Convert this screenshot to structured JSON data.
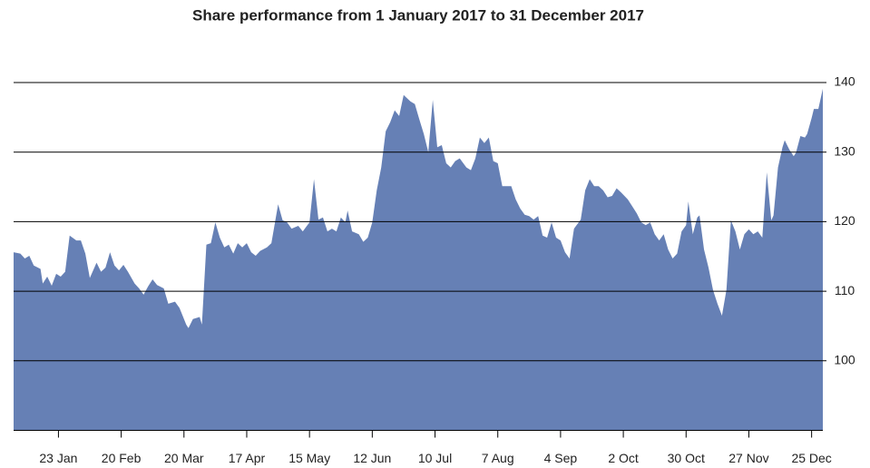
{
  "chart_data": {
    "type": "area",
    "title": "Share performance from 1 January 2017 to 31 December 2017",
    "color": "#6680b5",
    "grid": true,
    "yaxis_side": "right",
    "xlim": [
      3,
      364
    ],
    "ylim": [
      90,
      140
    ],
    "yticks": [
      100,
      110,
      120,
      130,
      140
    ],
    "xticks": [
      {
        "value": 23,
        "label": "23 Jan"
      },
      {
        "value": 51,
        "label": "20 Feb"
      },
      {
        "value": 79,
        "label": "20 Mar"
      },
      {
        "value": 107,
        "label": "17 Apr"
      },
      {
        "value": 135,
        "label": "15 May"
      },
      {
        "value": 163,
        "label": "12 Jun"
      },
      {
        "value": 191,
        "label": "10 Jul"
      },
      {
        "value": 219,
        "label": "7 Aug"
      },
      {
        "value": 247,
        "label": "4 Sep"
      },
      {
        "value": 275,
        "label": "2 Oct"
      },
      {
        "value": 303,
        "label": "30 Oct"
      },
      {
        "value": 331,
        "label": "27 Nov"
      },
      {
        "value": 359,
        "label": "25 Dec"
      }
    ],
    "x": [
      3,
      6,
      8,
      10,
      12,
      15,
      16,
      18,
      20,
      22,
      24,
      26,
      28,
      31,
      33,
      35,
      37,
      40,
      42,
      44,
      46,
      48,
      50,
      52,
      54,
      57,
      59,
      61,
      63,
      65,
      67,
      70,
      72,
      75,
      77,
      80,
      81,
      83,
      86,
      87,
      89,
      91,
      93,
      95,
      97,
      99,
      101,
      103,
      105,
      107,
      109,
      111,
      113,
      116,
      118,
      121,
      123,
      125,
      127,
      130,
      132,
      135,
      137,
      139,
      141,
      143,
      145,
      147,
      149,
      151,
      152,
      154,
      157,
      159,
      161,
      163,
      165,
      167,
      169,
      171,
      173,
      175,
      177,
      180,
      182,
      184,
      186,
      188,
      190,
      192,
      194,
      196,
      198,
      200,
      202,
      205,
      207,
      209,
      211,
      213,
      215,
      217,
      219,
      221,
      223,
      225,
      227,
      229,
      231,
      233,
      235,
      237,
      239,
      241,
      243,
      245,
      247,
      249,
      251,
      253,
      256,
      258,
      260,
      262,
      264,
      266,
      268,
      270,
      272,
      274,
      277,
      279,
      281,
      283,
      285,
      287,
      289,
      291,
      293,
      295,
      297,
      299,
      301,
      303,
      304,
      306,
      308,
      309,
      311,
      313,
      315,
      317,
      319,
      321,
      323,
      325,
      327,
      329,
      331,
      333,
      335,
      337,
      339,
      341,
      342,
      344,
      346,
      347,
      349,
      351,
      352,
      354,
      356,
      357,
      359,
      360,
      362,
      364
    ],
    "values": [
      115.6,
      115.4,
      114.7,
      115.1,
      113.7,
      113.2,
      111.1,
      112.1,
      110.8,
      112.5,
      112.1,
      112.8,
      118,
      117.3,
      117.3,
      115.4,
      111.9,
      114.1,
      112.8,
      113.4,
      115.6,
      113.7,
      113,
      113.8,
      112.8,
      111.1,
      110.4,
      109.5,
      110.7,
      111.7,
      110.9,
      110.4,
      108.2,
      108.5,
      107.6,
      105.2,
      104.7,
      106,
      106.3,
      105.2,
      116.7,
      116.9,
      119.9,
      117.7,
      116.3,
      116.7,
      115.4,
      116.9,
      116.3,
      116.9,
      115.6,
      115.1,
      115.8,
      116.3,
      116.9,
      122.5,
      120.2,
      119.9,
      119,
      119.4,
      118.6,
      119.9,
      126.1,
      120.3,
      120.6,
      118.6,
      119,
      118.6,
      120.6,
      119.9,
      121.6,
      118.6,
      118.2,
      117.1,
      117.7,
      119.9,
      124.5,
      127.8,
      133,
      134.3,
      136,
      135.2,
      138.2,
      137.3,
      136.9,
      134.7,
      132.6,
      130,
      137.5,
      130.7,
      131,
      128.4,
      127.8,
      128.7,
      129.1,
      127.8,
      127.4,
      129.1,
      132.1,
      131.3,
      132.1,
      128.7,
      128.4,
      125.1,
      125.1,
      125.1,
      123.2,
      121.9,
      121,
      120.8,
      120.3,
      120.8,
      118,
      117.7,
      119.9,
      117.7,
      117.3,
      115.6,
      114.7,
      119,
      120.3,
      124.5,
      126.1,
      125.1,
      125.1,
      124.5,
      123.5,
      123.7,
      124.8,
      124.2,
      123.2,
      122.2,
      121.2,
      119.9,
      119.5,
      119.9,
      118.2,
      117.3,
      118.2,
      116,
      114.7,
      115.4,
      118.6,
      119.5,
      122.9,
      118.2,
      120.6,
      120.9,
      116,
      113.4,
      110.2,
      108.2,
      106.5,
      110.2,
      120.2,
      118.6,
      116,
      118.2,
      118.9,
      118.2,
      118.6,
      117.7,
      127.1,
      120.2,
      120.9,
      127.8,
      130.7,
      131.7,
      130.4,
      129.4,
      129.9,
      132.3,
      132.1,
      132.6,
      134.9,
      136.2,
      136.2,
      139.1
    ]
  }
}
